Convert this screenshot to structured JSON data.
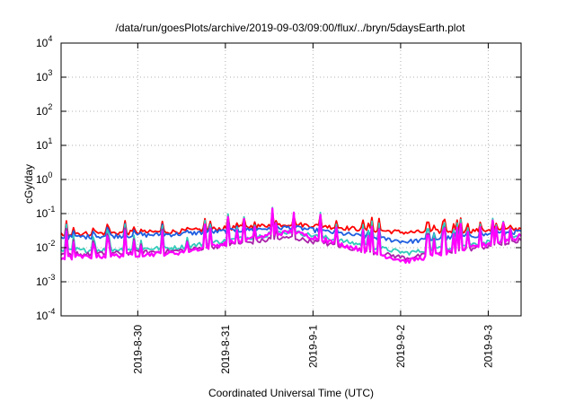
{
  "chart_data": {
    "type": "line",
    "title": "/data/run/goesPlots/archive/2019-09-03/09:00/flux/../bryn/5daysEarth.plot",
    "xlabel": "Coordinated Universal Time (UTC)",
    "ylabel": "cGy/day",
    "yscale": "log",
    "ylim": [
      0.0001,
      10000
    ],
    "y_ticks": [
      {
        "value": 0.0001,
        "base": "10",
        "exp": "-4"
      },
      {
        "value": 0.001,
        "base": "10",
        "exp": "-3"
      },
      {
        "value": 0.01,
        "base": "10",
        "exp": "-2"
      },
      {
        "value": 0.1,
        "base": "10",
        "exp": "-1"
      },
      {
        "value": 1,
        "base": "10",
        "exp": "0"
      },
      {
        "value": 10,
        "base": "10",
        "exp": "1"
      },
      {
        "value": 100,
        "base": "10",
        "exp": "2"
      },
      {
        "value": 1000,
        "base": "10",
        "exp": "3"
      },
      {
        "value": 10000,
        "base": "10",
        "exp": "4"
      }
    ],
    "xlim": [
      "2019-08-29T03:00",
      "2019-09-03T09:00"
    ],
    "x_ticks": [
      {
        "value": "2019-08-30T00:00",
        "label": "2019-8-30"
      },
      {
        "value": "2019-08-31T00:00",
        "label": "2019-8-31"
      },
      {
        "value": "2019-09-01T00:00",
        "label": "2019-9-1"
      },
      {
        "value": "2019-09-02T00:00",
        "label": "2019-9-2"
      },
      {
        "value": "2019-09-03T00:00",
        "label": "2019-9-3"
      }
    ],
    "grid": true,
    "series": [
      {
        "color": "#ff0000",
        "values": [
          0.025,
          0.03,
          0.05,
          0.028,
          0.035
        ]
      },
      {
        "color": "#1f5fe0",
        "values": [
          0.02,
          0.025,
          0.04,
          0.015,
          0.03
        ]
      },
      {
        "color": "#33ccbb",
        "values": [
          0.008,
          0.01,
          0.03,
          0.007,
          0.02
        ]
      },
      {
        "color": "#aa22aa",
        "values": [
          0.006,
          0.008,
          0.02,
          0.005,
          0.015
        ]
      },
      {
        "color": "#ff00ff",
        "values": [
          0.005,
          0.007,
          0.03,
          0.004,
          0.02
        ]
      }
    ]
  }
}
